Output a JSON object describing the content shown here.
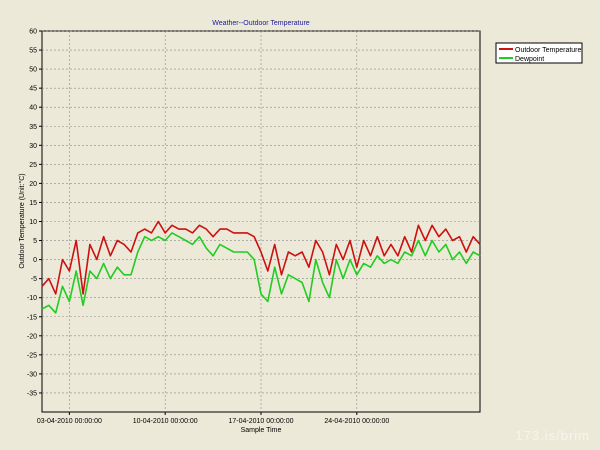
{
  "watermark": "173.is/brim",
  "chart_data": {
    "type": "line",
    "title": "Weather--Outdoor Temperature",
    "xlabel": "Sample Time",
    "ylabel": "Outdoor Temperature (Unit:°C)",
    "ylim": [
      -40,
      60
    ],
    "yticks": [
      -35,
      -30,
      -25,
      -20,
      -15,
      -10,
      -5,
      0,
      5,
      10,
      15,
      20,
      25,
      30,
      35,
      40,
      45,
      50,
      55,
      60
    ],
    "xlim": [
      "2010-04-01",
      "2010-05-03"
    ],
    "xticks": [
      {
        "x": "2010-04-03",
        "label": "03-04-2010 00:00:00"
      },
      {
        "x": "2010-04-10",
        "label": "10-04-2010 00:00:00"
      },
      {
        "x": "2010-04-17",
        "label": "17-04-2010 00:00:00"
      },
      {
        "x": "2010-04-24",
        "label": "24-04-2010 00:00:00"
      }
    ],
    "x": [
      "2010-04-01",
      "2010-04-01 12:00",
      "2010-04-02",
      "2010-04-02 12:00",
      "2010-04-03",
      "2010-04-03 12:00",
      "2010-04-04",
      "2010-04-04 12:00",
      "2010-04-05",
      "2010-04-05 12:00",
      "2010-04-06",
      "2010-04-06 12:00",
      "2010-04-07",
      "2010-04-07 12:00",
      "2010-04-08",
      "2010-04-08 12:00",
      "2010-04-09",
      "2010-04-09 12:00",
      "2010-04-10",
      "2010-04-10 12:00",
      "2010-04-11",
      "2010-04-11 12:00",
      "2010-04-12",
      "2010-04-12 12:00",
      "2010-04-13",
      "2010-04-13 12:00",
      "2010-04-14",
      "2010-04-14 12:00",
      "2010-04-15",
      "2010-04-15 12:00",
      "2010-04-16",
      "2010-04-16 12:00",
      "2010-04-17",
      "2010-04-17 12:00",
      "2010-04-18",
      "2010-04-18 12:00",
      "2010-04-19",
      "2010-04-19 12:00",
      "2010-04-20",
      "2010-04-20 12:00",
      "2010-04-21",
      "2010-04-21 12:00",
      "2010-04-22",
      "2010-04-22 12:00",
      "2010-04-23",
      "2010-04-23 12:00",
      "2010-04-24",
      "2010-04-24 12:00",
      "2010-04-25",
      "2010-04-25 12:00",
      "2010-04-26",
      "2010-04-26 12:00",
      "2010-04-27",
      "2010-04-27 12:00",
      "2010-04-28",
      "2010-04-28 12:00",
      "2010-04-29",
      "2010-04-29 12:00",
      "2010-04-30",
      "2010-04-30 12:00",
      "2010-05-01",
      "2010-05-01 12:00",
      "2010-05-02",
      "2010-05-02 12:00",
      "2010-05-03"
    ],
    "series": [
      {
        "name": "Outdoor Temperature",
        "color": "#cc1111",
        "values": [
          -7,
          -5,
          -9,
          0,
          -3,
          5,
          -9,
          4,
          0,
          6,
          1,
          5,
          4,
          2,
          7,
          8,
          7,
          10,
          7,
          9,
          8,
          8,
          7,
          9,
          8,
          6,
          8,
          8,
          7,
          7,
          7,
          6,
          2,
          -3,
          4,
          -4,
          2,
          1,
          2,
          -2,
          5,
          2,
          -4,
          4,
          0,
          5,
          -2,
          5,
          1,
          6,
          1,
          4,
          1,
          6,
          2,
          9,
          5,
          9,
          6,
          8,
          5,
          6,
          2,
          6,
          4
        ]
      },
      {
        "name": "Dewpoint",
        "color": "#22cc22",
        "values": [
          -13,
          -12,
          -14,
          -7,
          -11,
          -3,
          -12,
          -3,
          -5,
          -1,
          -5,
          -2,
          -4,
          -4,
          2,
          6,
          5,
          6,
          5,
          7,
          6,
          5,
          4,
          6,
          3,
          1,
          4,
          3,
          2,
          2,
          2,
          0,
          -9,
          -11,
          -2,
          -9,
          -4,
          -5,
          -6,
          -11,
          0,
          -6,
          -10,
          0,
          -5,
          0,
          -4,
          -1,
          -2,
          1,
          -1,
          0,
          -1,
          2,
          1,
          5,
          1,
          5,
          2,
          4,
          0,
          2,
          -1,
          2,
          1
        ]
      }
    ],
    "grid": true,
    "legend_position": "top-right"
  }
}
